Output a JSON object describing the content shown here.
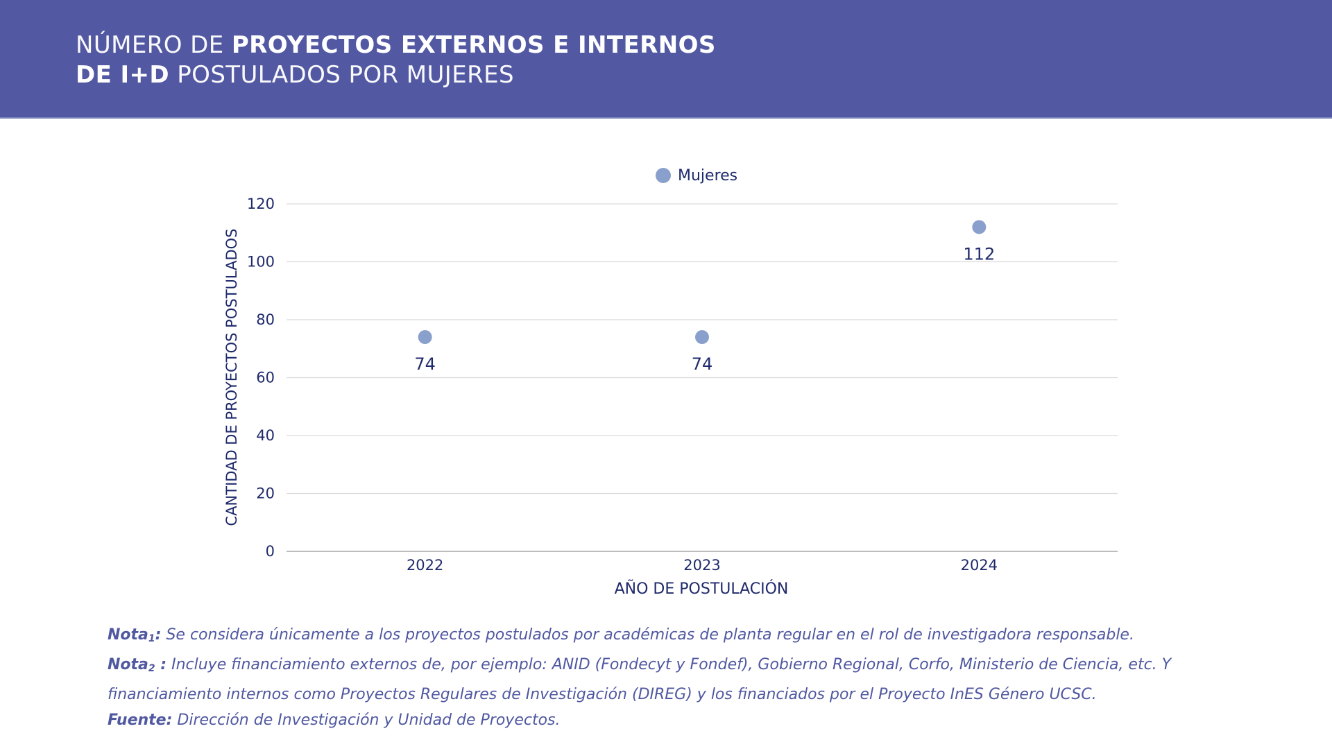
{
  "header": {
    "title_line1_light": "NÚMERO DE ",
    "title_line1_bold": "PROYECTOS EXTERNOS E INTERNOS",
    "title_line2_bold": "DE I+D",
    "title_line2_light": " POSTULADOS POR MUJERES",
    "background_color": "#5259A2"
  },
  "chart_data": {
    "type": "scatter",
    "title": "NÚMERO DE PROYECTOS EXTERNOS E INTERNOS DE I+D POSTULADOS POR MUJERES",
    "categories": [
      "2022",
      "2023",
      "2024"
    ],
    "series": [
      {
        "name": "Mujeres",
        "values": [
          74,
          74,
          112
        ],
        "color": "#8AA0CC",
        "data_labels": [
          "74",
          "74",
          "112"
        ]
      }
    ],
    "xlabel": "AÑO DE POSTULACIÓN",
    "ylabel": "CANTIDAD DE PROYECTOS POSTULADOS",
    "ylim": [
      0,
      120
    ],
    "yticks": [
      0,
      20,
      40,
      60,
      80,
      100,
      120
    ],
    "ytick_labels": [
      "0",
      "20",
      "40",
      "60",
      "80",
      "100",
      "120"
    ],
    "grid": true,
    "legend": {
      "position": "top-center",
      "entries": [
        "Mujeres"
      ]
    },
    "text_color": "#1F2A6B",
    "grid_color": "#DADADA"
  },
  "notes": [
    {
      "label": "Nota",
      "subscript": "1",
      "colon": ":",
      "text": " Se considera únicamente a los proyectos postulados por académicas de planta regular en el rol de investigadora responsable."
    },
    {
      "label": "Nota",
      "subscript": "2",
      "colon": " :",
      "text": " Incluye financiamiento externos de, por ejemplo: ANID (Fondecyt y Fondef), Gobierno Regional, Corfo, Ministerio de Ciencia, etc. Y",
      "continuation": "financiamiento  internos como Proyectos Regulares de Investigación (DIREG) y los financiados por el Proyecto InES Género UCSC."
    },
    {
      "label": "Fuente:",
      "text": " Dirección de Investigación y Unidad de Proyectos."
    }
  ],
  "notes_color": "#5058A0"
}
